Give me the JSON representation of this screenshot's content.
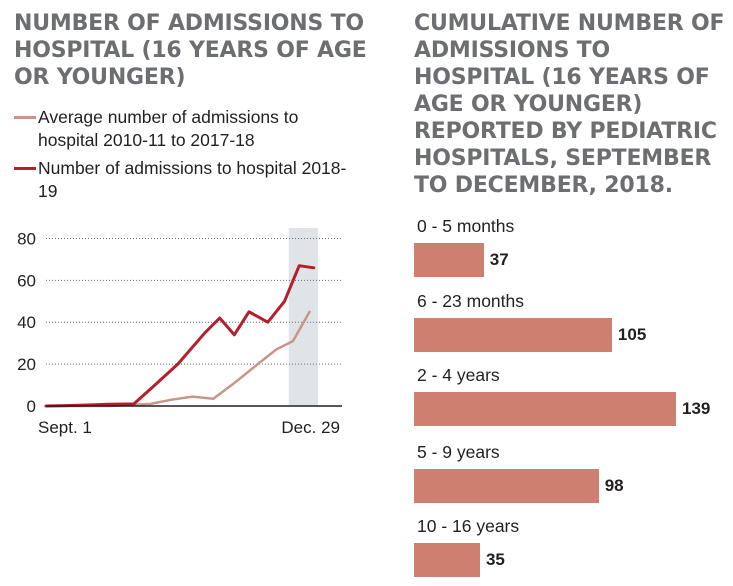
{
  "left_title": "NUMBER OF ADMISSIONS TO HOSPITAL (16 YEARS OF AGE OR YOUNGER)",
  "right_title": "CUMULATIVE NUMBER OF ADMISSIONS TO HOSPITAL (16 YEARS OF AGE OR YOUNGER) REPORTED BY PEDIATRIC HOSPITALS, SEPTEMBER TO DECEMBER, 2018.",
  "colors": {
    "average": "#c79688",
    "current": "#b31f2b",
    "highlight": "#dfe4e8",
    "bars": "#cd7f70"
  },
  "chart_data": [
    {
      "type": "line",
      "title": "NUMBER OF ADMISSIONS TO HOSPITAL (16 YEARS OF AGE OR YOUNGER)",
      "x_range": [
        0,
        13
      ],
      "x_tick_labels": [
        "Sept. 1",
        "Dec. 29"
      ],
      "y_ticks": [
        0,
        20,
        40,
        60,
        80
      ],
      "ylim": [
        0,
        85
      ],
      "grid": true,
      "highlight_x_range": [
        11.6,
        13
      ],
      "series": [
        {
          "name": "Average number of admissions to hospital 2010-11 to 2017-18",
          "color": "#c79688",
          "x": [
            0,
            1,
            2,
            3,
            4,
            5,
            6,
            7,
            8,
            9,
            10,
            11,
            11.8,
            12.6
          ],
          "values": [
            0,
            0,
            0,
            0,
            0.5,
            1,
            3,
            4.5,
            3.5,
            11,
            19,
            27,
            31,
            45
          ]
        },
        {
          "name": "Number of admissions to hospital 2018-19",
          "color": "#b31f2b",
          "x": [
            0,
            1,
            2,
            3,
            4.2,
            5.2,
            6.3,
            7.6,
            8.3,
            9,
            9.7,
            10.6,
            11.4,
            12.1,
            12.8
          ],
          "values": [
            0,
            0.2,
            0.5,
            0.8,
            1,
            10,
            20,
            35,
            42,
            34,
            45,
            40,
            50,
            67,
            66
          ]
        }
      ]
    },
    {
      "type": "bar",
      "orientation": "horizontal",
      "title": "CUMULATIVE NUMBER OF ADMISSIONS TO HOSPITAL (16 YEARS OF AGE OR YOUNGER) REPORTED BY PEDIATRIC HOSPITALS, SEPTEMBER TO DECEMBER, 2018.",
      "categories": [
        "0 - 5 months",
        "6 - 23 months",
        "2 - 4 years",
        "5 - 9 years",
        "10 - 16 years"
      ],
      "values": [
        37,
        105,
        139,
        98,
        35
      ],
      "xlim": [
        0,
        139
      ]
    }
  ]
}
